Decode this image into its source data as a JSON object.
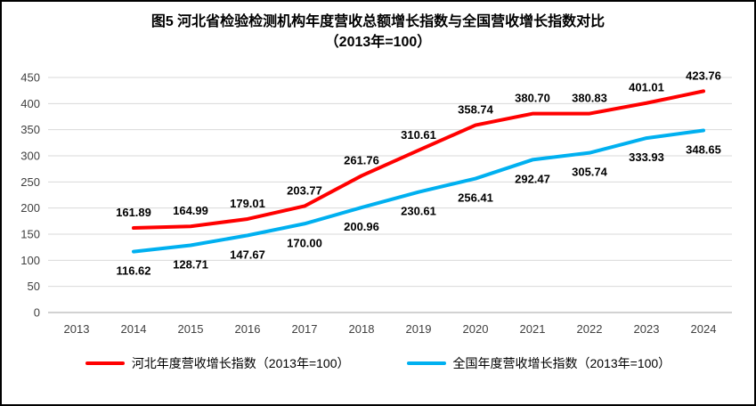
{
  "title": {
    "line1": "图5  河北省检验检测机构年度营收总额增长指数与全国营收增长指数对比",
    "line2": "（2013年=100）"
  },
  "chart_data": {
    "type": "line",
    "categories": [
      "2013",
      "2014",
      "2015",
      "2016",
      "2017",
      "2018",
      "2019",
      "2020",
      "2021",
      "2022",
      "2023",
      "2024"
    ],
    "series": [
      {
        "name": "河北年度营收增长指数（2013年=100）",
        "color": "#FF0000",
        "label_position": "above",
        "values": [
          null,
          161.89,
          164.99,
          179.01,
          203.77,
          261.76,
          310.61,
          358.74,
          380.7,
          380.83,
          401.01,
          423.76
        ]
      },
      {
        "name": "全国年度营收增长指数（2013年=100）",
        "color": "#00B0F0",
        "label_position": "below",
        "values": [
          null,
          116.62,
          128.71,
          147.67,
          170.0,
          200.96,
          230.61,
          256.41,
          292.47,
          305.74,
          333.93,
          348.65
        ]
      }
    ],
    "ylim": [
      0,
      450
    ],
    "ytick_step": 50,
    "grid": true,
    "grid_color": "#D9D9D9",
    "axis_color": "#A6A6A6",
    "legend_position": "bottom"
  }
}
